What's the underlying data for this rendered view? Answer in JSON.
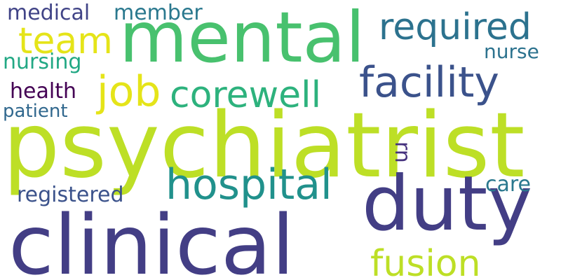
{
  "words": {
    "psychiatrist": {
      "text": "psychiatrist",
      "color": "#bddf26"
    },
    "clinical": {
      "text": "clinical",
      "color": "#433e85"
    },
    "mental": {
      "text": "mental",
      "color": "#48c16e"
    },
    "duty": {
      "text": "duty",
      "color": "#433e85"
    },
    "facility": {
      "text": "facility",
      "color": "#3b528b"
    },
    "hospital": {
      "text": "hospital",
      "color": "#21918c"
    },
    "corewell": {
      "text": "corewell",
      "color": "#2db27d"
    },
    "required": {
      "text": "required",
      "color": "#2c728e"
    },
    "job": {
      "text": "job",
      "color": "#e5e419"
    },
    "team": {
      "text": "team",
      "color": "#e5e419"
    },
    "fusion": {
      "text": "fusion",
      "color": "#bddf26"
    },
    "medical": {
      "text": "medical",
      "color": "#414487"
    },
    "member": {
      "text": "member",
      "color": "#2a788e"
    },
    "nursing": {
      "text": "nursing",
      "color": "#22a884"
    },
    "health": {
      "text": "health",
      "color": "#440154"
    },
    "patient": {
      "text": "patient",
      "color": "#31688e"
    },
    "nurse": {
      "text": "nurse",
      "color": "#2c728e"
    },
    "registered": {
      "text": "registered",
      "color": "#3b528b"
    },
    "care": {
      "text": "care",
      "color": "#2a788e"
    },
    "rn": {
      "text": "rn",
      "color": "#46327e"
    }
  }
}
